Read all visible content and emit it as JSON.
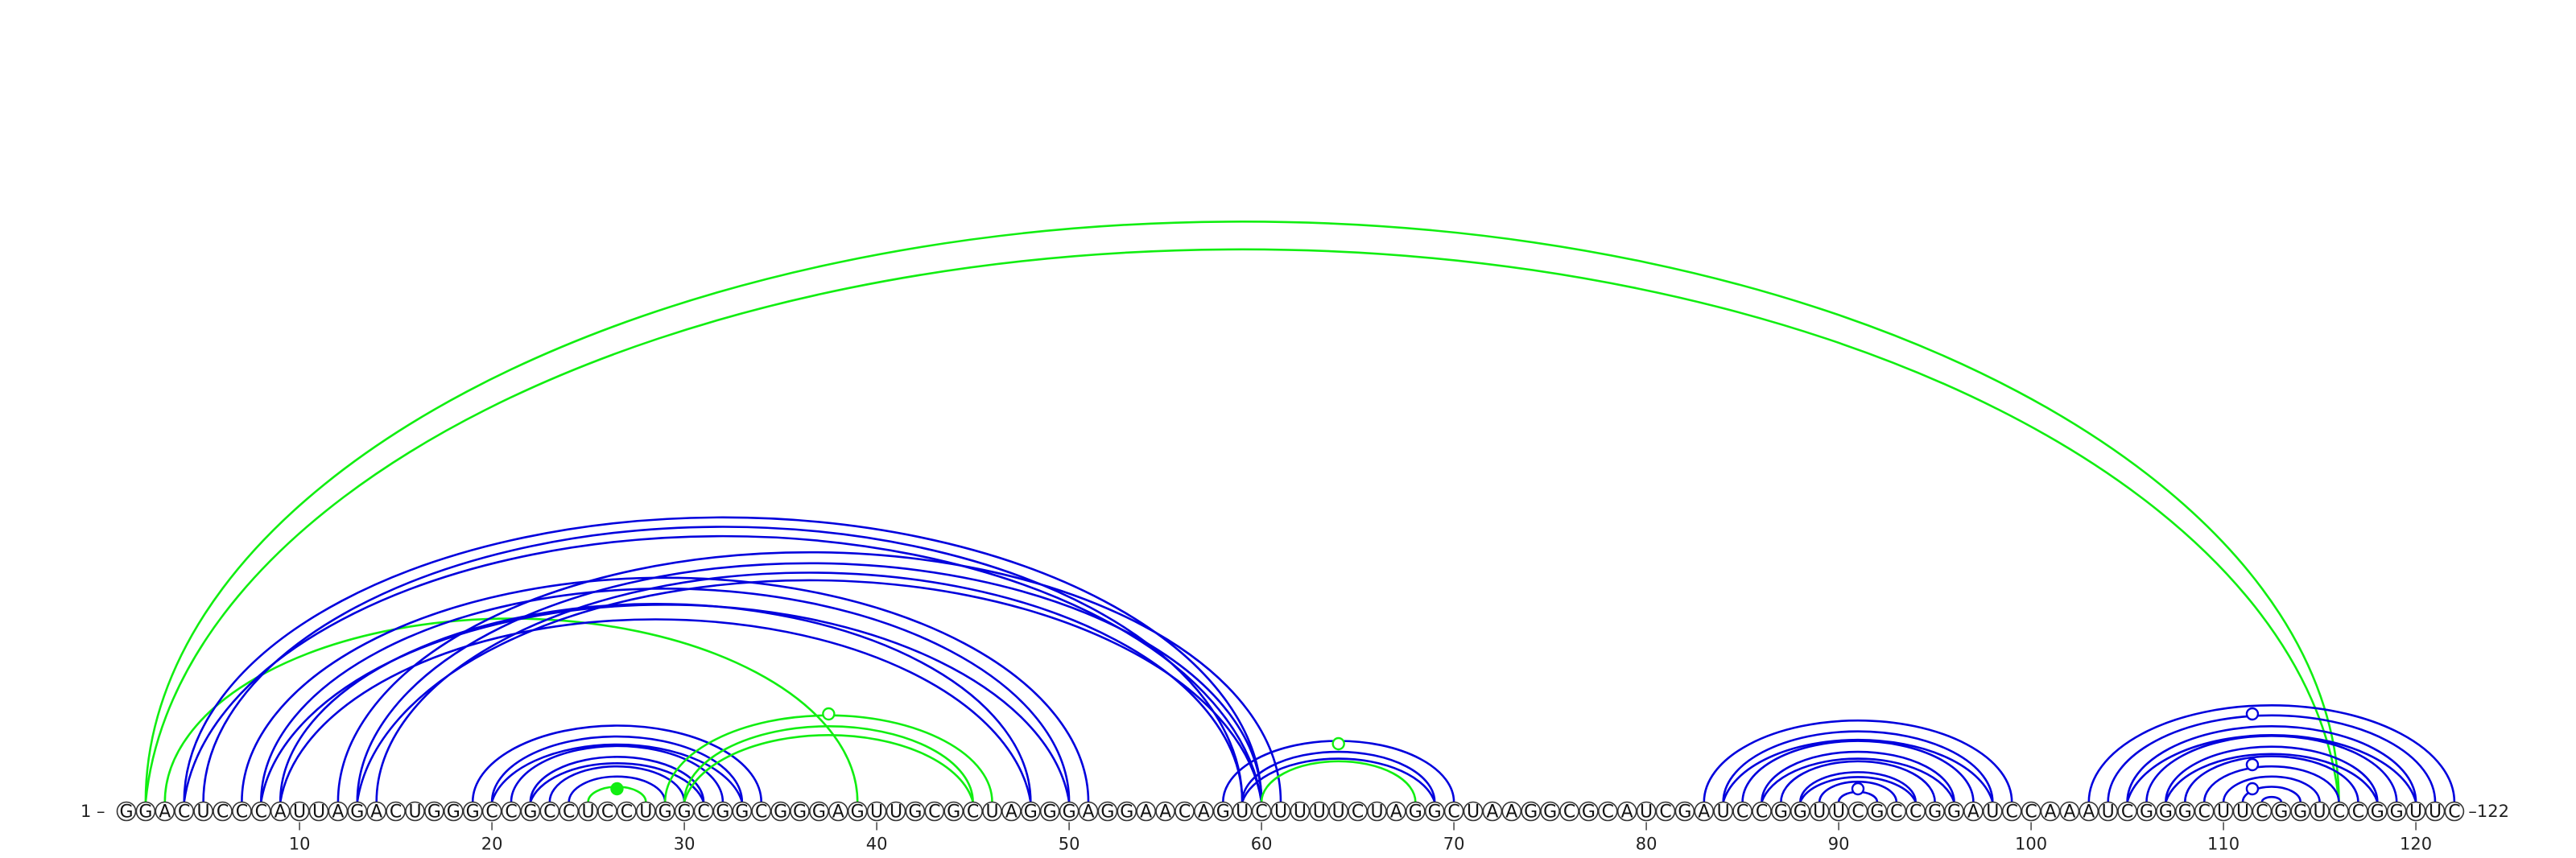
{
  "sequence": "GGACUCCCAUUAGACUGGGCCGCCUCCUGGCGGCGGGAGUUGCGCUAGGGAGGAACAGUCUUUUCUAGGCUAAGGCGCAUCGAUCCGGUUCGCCGGAUCCAAAUCGGGCUUCGGUCCGGUUC",
  "start_label": "1 –",
  "end_label": "–122",
  "tick_labels": [
    "10",
    "20",
    "30",
    "40",
    "50",
    "60",
    "70",
    "80",
    "90",
    "100",
    "110",
    "120"
  ],
  "tick_positions": [
    10,
    20,
    30,
    40,
    50,
    60,
    70,
    80,
    90,
    100,
    110,
    120
  ],
  "colors": {
    "canonical": "#0000dd",
    "noncanonical": "#11ee11"
  },
  "base_pairs": [
    {
      "i": 2,
      "j": 116,
      "type": "noncanonical",
      "double": true
    },
    {
      "i": 3,
      "j": 39,
      "type": "noncanonical",
      "double": false
    },
    {
      "i": 4,
      "j": 60,
      "type": "canonical",
      "double": true
    },
    {
      "i": 5,
      "j": 59,
      "type": "canonical",
      "double": false
    },
    {
      "i": 7,
      "j": 51,
      "type": "canonical",
      "double": false
    },
    {
      "i": 8,
      "j": 50,
      "type": "canonical",
      "double": true
    },
    {
      "i": 9,
      "j": 48,
      "type": "canonical",
      "double": true
    },
    {
      "i": 12,
      "j": 61,
      "type": "canonical",
      "double": false
    },
    {
      "i": 13,
      "j": 60,
      "type": "canonical",
      "double": true
    },
    {
      "i": 14,
      "j": 59,
      "type": "canonical",
      "double": false
    },
    {
      "i": 19,
      "j": 34,
      "type": "canonical",
      "double": false
    },
    {
      "i": 20,
      "j": 33,
      "type": "canonical",
      "double": true
    },
    {
      "i": 21,
      "j": 32,
      "type": "canonical",
      "double": false
    },
    {
      "i": 22,
      "j": 31,
      "type": "canonical",
      "double": true
    },
    {
      "i": 23,
      "j": 30,
      "type": "canonical",
      "double": false
    },
    {
      "i": 24,
      "j": 29,
      "type": "canonical",
      "double": false
    },
    {
      "i": 25,
      "j": 28,
      "type": "noncanonical",
      "double": false
    },
    {
      "i": 29,
      "j": 46,
      "type": "noncanonical",
      "double": false
    },
    {
      "i": 30,
      "j": 45,
      "type": "noncanonical",
      "double": true
    },
    {
      "i": 58,
      "j": 70,
      "type": "canonical",
      "double": false
    },
    {
      "i": 59,
      "j": 69,
      "type": "canonical",
      "double": true
    },
    {
      "i": 60,
      "j": 68,
      "type": "noncanonical",
      "double": false
    },
    {
      "i": 83,
      "j": 99,
      "type": "canonical",
      "double": false
    },
    {
      "i": 84,
      "j": 98,
      "type": "canonical",
      "double": true
    },
    {
      "i": 85,
      "j": 97,
      "type": "canonical",
      "double": false
    },
    {
      "i": 86,
      "j": 96,
      "type": "canonical",
      "double": true
    },
    {
      "i": 87,
      "j": 95,
      "type": "canonical",
      "double": false
    },
    {
      "i": 88,
      "j": 94,
      "type": "canonical",
      "double": true
    },
    {
      "i": 89,
      "j": 93,
      "type": "canonical",
      "double": false
    },
    {
      "i": 90,
      "j": 92,
      "type": "canonical",
      "double": false
    },
    {
      "i": 103,
      "j": 122,
      "type": "canonical",
      "double": false
    },
    {
      "i": 104,
      "j": 121,
      "type": "canonical",
      "double": false
    },
    {
      "i": 105,
      "j": 120,
      "type": "canonical",
      "double": true
    },
    {
      "i": 106,
      "j": 119,
      "type": "canonical",
      "double": false
    },
    {
      "i": 107,
      "j": 118,
      "type": "canonical",
      "double": true
    },
    {
      "i": 108,
      "j": 117,
      "type": "canonical",
      "double": false
    },
    {
      "i": 109,
      "j": 116,
      "type": "canonical",
      "double": false
    },
    {
      "i": 110,
      "j": 115,
      "type": "canonical",
      "double": false
    },
    {
      "i": 111,
      "j": 114,
      "type": "canonical",
      "double": false
    },
    {
      "i": 112,
      "j": 113,
      "type": "canonical",
      "double": false
    }
  ],
  "markers": [
    {
      "pos": 26.5,
      "level": 1,
      "type": "noncanonical",
      "filled": true
    },
    {
      "pos": 37.5,
      "level": 4,
      "type": "noncanonical",
      "filled": false
    },
    {
      "pos": 64,
      "level": 3,
      "type": "noncanonical",
      "filled": false
    },
    {
      "pos": 91,
      "level": 1,
      "type": "canonical",
      "filled": false
    },
    {
      "pos": 111.5,
      "level": 1,
      "type": "canonical",
      "filled": false
    },
    {
      "pos": 111.5,
      "level": 2,
      "type": "canonical",
      "filled": false
    },
    {
      "pos": 111.5,
      "level": 4,
      "type": "canonical",
      "filled": false
    }
  ]
}
